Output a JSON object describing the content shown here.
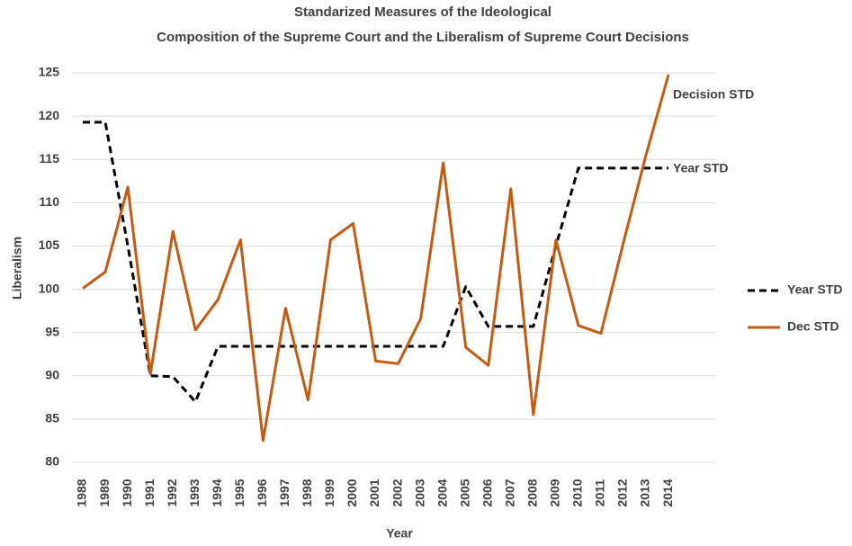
{
  "chart_data": {
    "type": "line",
    "title": [
      "Standarized Measures of the Ideological",
      "Composition of the Supreme Court and the Liberalism of Supreme Court Decisions"
    ],
    "x_label": "Year",
    "y_label": "Liberalism",
    "categories": [
      "1988",
      "1989",
      "1990",
      "1991",
      "1992",
      "1993",
      "1994",
      "1995",
      "1996",
      "1997",
      "1998",
      "1999",
      "2000",
      "2001",
      "2002",
      "2003",
      "2004",
      "2005",
      "2006",
      "2007",
      "2008",
      "2009",
      "2010",
      "2011",
      "2012",
      "2013",
      "2014"
    ],
    "series": [
      {
        "name": "Year STD",
        "color": "#000000",
        "dashed": true,
        "values": [
          119.3,
          119.3,
          105,
          90,
          89.9,
          87,
          93.4,
          93.4,
          93.4,
          93.4,
          93.4,
          93.4,
          93.4,
          93.4,
          93.4,
          93.4,
          93.4,
          100.3,
          95.7,
          95.7,
          95.7,
          105,
          114,
          114,
          114,
          114,
          114
        ]
      },
      {
        "name": "Dec STD",
        "color": "#c55a11",
        "dashed": false,
        "values": [
          100.1,
          102,
          111.8,
          90.2,
          106.7,
          95.3,
          98.8,
          105.7,
          82.5,
          97.8,
          87.2,
          105.7,
          107.6,
          91.7,
          91.4,
          96.6,
          114.6,
          93.3,
          91.2,
          111.6,
          85.5,
          105.7,
          95.8,
          94.9,
          105.4,
          115.5,
          124.8
        ]
      }
    ],
    "annotations": [
      "Decision STD",
      "Year STD"
    ],
    "ylim": [
      80,
      125
    ],
    "yticks": [
      80,
      85,
      90,
      95,
      100,
      105,
      110,
      115,
      120,
      125
    ],
    "grid": true,
    "legend": "right"
  }
}
